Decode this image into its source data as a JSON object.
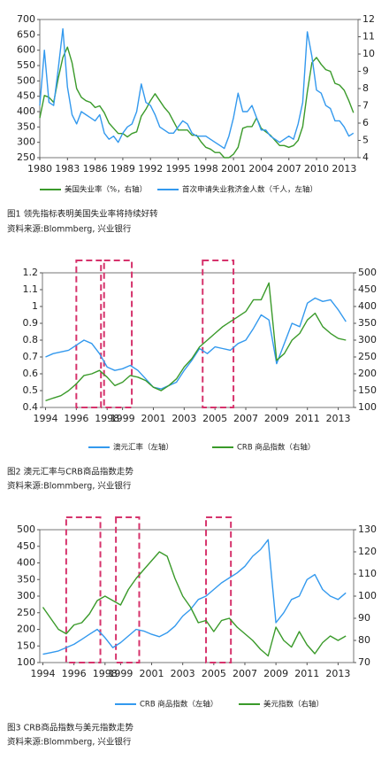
{
  "chart_data": [
    {
      "type": "line",
      "caption": "图1 领先指标表明美国失业率将持续好转",
      "source": "资料来源:Blommberg, 兴业银行",
      "x": [
        1980,
        1980.5,
        1981,
        1981.5,
        1982,
        1982.5,
        1983,
        1983.5,
        1984,
        1984.5,
        1985,
        1985.5,
        1986,
        1986.5,
        1987,
        1987.5,
        1988,
        1988.5,
        1989,
        1989.5,
        1990,
        1990.5,
        1991,
        1991.5,
        1992,
        1992.5,
        1993,
        1993.5,
        1994,
        1994.5,
        1995,
        1995.5,
        1996,
        1996.5,
        1997,
        1997.5,
        1998,
        1998.5,
        1999,
        1999.5,
        2000,
        2000.5,
        2001,
        2001.5,
        2002,
        2002.5,
        2003,
        2003.5,
        2004,
        2004.5,
        2005,
        2005.5,
        2006,
        2006.5,
        2007,
        2007.5,
        2008,
        2008.5,
        2009,
        2009.5,
        2010,
        2010.5,
        2011,
        2011.5,
        2012,
        2012.5,
        2013,
        2013.5,
        2014
      ],
      "xlim": [
        1980,
        2014.5
      ],
      "xticks": [
        1980,
        1983,
        1986,
        1989,
        1992,
        1995,
        1998,
        2001,
        2004,
        2007,
        2010,
        2013
      ],
      "ylim": [
        250,
        700
      ],
      "yticks": [
        250,
        300,
        350,
        400,
        450,
        500,
        550,
        600,
        650,
        700
      ],
      "y2lim": [
        4,
        12
      ],
      "y2ticks": [
        4,
        5,
        6,
        7,
        8,
        9,
        10,
        11,
        12
      ],
      "series": [
        {
          "name": "美国失业率（%，右轴）",
          "color": "#3a9a2a",
          "axis": "y2",
          "values": [
            6.3,
            7.6,
            7.5,
            7.2,
            8.6,
            9.8,
            10.4,
            9.5,
            8.0,
            7.5,
            7.3,
            7.2,
            6.9,
            7.0,
            6.6,
            6.0,
            5.7,
            5.4,
            5.4,
            5.2,
            5.4,
            5.5,
            6.4,
            6.8,
            7.3,
            7.7,
            7.3,
            6.9,
            6.6,
            6.1,
            5.6,
            5.6,
            5.6,
            5.3,
            5.3,
            4.9,
            4.6,
            4.5,
            4.3,
            4.3,
            4.0,
            4.0,
            4.2,
            4.6,
            5.7,
            5.8,
            5.8,
            6.3,
            5.7,
            5.5,
            5.3,
            5.0,
            4.7,
            4.7,
            4.6,
            4.7,
            5.0,
            5.8,
            7.8,
            9.5,
            9.8,
            9.4,
            9.1,
            9.0,
            8.3,
            8.2,
            7.9,
            7.3,
            6.6
          ]
        },
        {
          "name": "首次申请失业救济金人数（千人，左轴）",
          "color": "#3399ee",
          "values": [
            420,
            600,
            430,
            420,
            540,
            670,
            480,
            390,
            360,
            400,
            390,
            380,
            370,
            390,
            330,
            310,
            320,
            300,
            330,
            350,
            360,
            400,
            490,
            430,
            420,
            390,
            350,
            340,
            330,
            330,
            350,
            370,
            360,
            330,
            320,
            320,
            320,
            310,
            300,
            290,
            280,
            320,
            380,
            460,
            400,
            400,
            420,
            380,
            340,
            340,
            320,
            310,
            300,
            310,
            320,
            310,
            360,
            430,
            660,
            580,
            470,
            460,
            420,
            410,
            370,
            370,
            350,
            320,
            330
          ]
        }
      ]
    },
    {
      "type": "line",
      "caption": "图2 澳元汇率与CRB商品指数走势",
      "source": "资料来源:Blommberg, 兴业银行",
      "x": [
        1994,
        1994.5,
        1995,
        1995.5,
        1996,
        1996.5,
        1997,
        1997.5,
        1998,
        1998.5,
        1999,
        1999.5,
        2000,
        2000.5,
        2001,
        2001.5,
        2002,
        2002.5,
        2003,
        2003.5,
        2004,
        2004.5,
        2005,
        2005.5,
        2006,
        2006.5,
        2007,
        2007.5,
        2008,
        2008.5,
        2009,
        2009.5,
        2010,
        2010.5,
        2011,
        2011.5,
        2012,
        2012.5,
        2013,
        2013.5
      ],
      "xlim": [
        1993.8,
        2014
      ],
      "xticks": [
        1994,
        1996,
        1998,
        1999,
        2001,
        2003,
        2005,
        2007,
        2009,
        2011,
        2013
      ],
      "ylim": [
        0.4,
        1.2
      ],
      "yticks": [
        0.4,
        0.5,
        0.6,
        0.7,
        0.8,
        0.9,
        1,
        1.1,
        1.2
      ],
      "y2lim": [
        100,
        500
      ],
      "y2ticks": [
        100,
        150,
        200,
        250,
        300,
        350,
        400,
        450,
        500
      ],
      "highlights": [
        [
          1996,
          1997.6
        ],
        [
          1997.8,
          1999.6
        ],
        [
          2004.2,
          2006.2
        ]
      ],
      "series": [
        {
          "name": "澳元汇率（左轴）",
          "color": "#3399ee",
          "values": [
            0.7,
            0.72,
            0.73,
            0.74,
            0.77,
            0.8,
            0.78,
            0.72,
            0.64,
            0.62,
            0.63,
            0.65,
            0.62,
            0.57,
            0.52,
            0.51,
            0.53,
            0.55,
            0.62,
            0.68,
            0.75,
            0.72,
            0.76,
            0.75,
            0.74,
            0.78,
            0.8,
            0.87,
            0.95,
            0.92,
            0.66,
            0.78,
            0.9,
            0.88,
            1.02,
            1.05,
            1.03,
            1.04,
            0.98,
            0.91
          ]
        },
        {
          "name": "CRB 商品指数（右轴）",
          "color": "#3a9a2a",
          "axis": "y2",
          "values": [
            120,
            128,
            135,
            150,
            170,
            195,
            200,
            210,
            190,
            165,
            175,
            195,
            190,
            180,
            160,
            150,
            165,
            185,
            220,
            245,
            280,
            300,
            320,
            340,
            355,
            370,
            385,
            420,
            420,
            470,
            240,
            260,
            300,
            320,
            360,
            380,
            340,
            320,
            305,
            300
          ]
        }
      ]
    },
    {
      "type": "line",
      "caption": "图3 CRB商品指数与美元指数走势",
      "source": "资料来源:Blommberg, 兴业银行",
      "x": [
        1994,
        1994.5,
        1995,
        1995.5,
        1996,
        1996.5,
        1997,
        1997.5,
        1998,
        1998.5,
        1999,
        1999.5,
        2000,
        2000.5,
        2001,
        2001.5,
        2002,
        2002.5,
        2003,
        2003.5,
        2004,
        2004.5,
        2005,
        2005.5,
        2006,
        2006.5,
        2007,
        2007.5,
        2008,
        2008.5,
        2009,
        2009.5,
        2010,
        2010.5,
        2011,
        2011.5,
        2012,
        2012.5,
        2013,
        2013.5
      ],
      "xlim": [
        1993.8,
        2014
      ],
      "xticks": [
        1994,
        1996,
        1998,
        1999,
        2001,
        2003,
        2005,
        2007,
        2009,
        2011,
        2013
      ],
      "ylim": [
        100,
        500
      ],
      "yticks": [
        100,
        150,
        200,
        250,
        300,
        350,
        400,
        450,
        500
      ],
      "y2lim": [
        70,
        130
      ],
      "y2ticks": [
        70,
        80,
        90,
        100,
        110,
        120,
        130
      ],
      "highlights": [
        [
          1995.5,
          1997.7
        ],
        [
          1998.7,
          2000.2
        ],
        [
          2004.5,
          2006.1
        ]
      ],
      "series": [
        {
          "name": "CRB 商品指数（左轴）",
          "color": "#3399ee",
          "values": [
            125,
            130,
            135,
            145,
            155,
            170,
            185,
            200,
            175,
            145,
            160,
            180,
            200,
            195,
            185,
            178,
            190,
            210,
            240,
            260,
            290,
            300,
            320,
            340,
            355,
            370,
            390,
            420,
            440,
            470,
            220,
            250,
            290,
            300,
            350,
            365,
            320,
            300,
            290,
            310
          ]
        },
        {
          "name": "美元指数（右轴）",
          "color": "#3a9a2a",
          "axis": "y2",
          "values": [
            95,
            90,
            85,
            83,
            87,
            88,
            92,
            98,
            100,
            98,
            96,
            103,
            108,
            112,
            116,
            120,
            118,
            108,
            100,
            95,
            88,
            89,
            84,
            89,
            90,
            86,
            83,
            80,
            76,
            73,
            86,
            80,
            77,
            84,
            78,
            74,
            79,
            82,
            80,
            82
          ]
        }
      ]
    }
  ]
}
